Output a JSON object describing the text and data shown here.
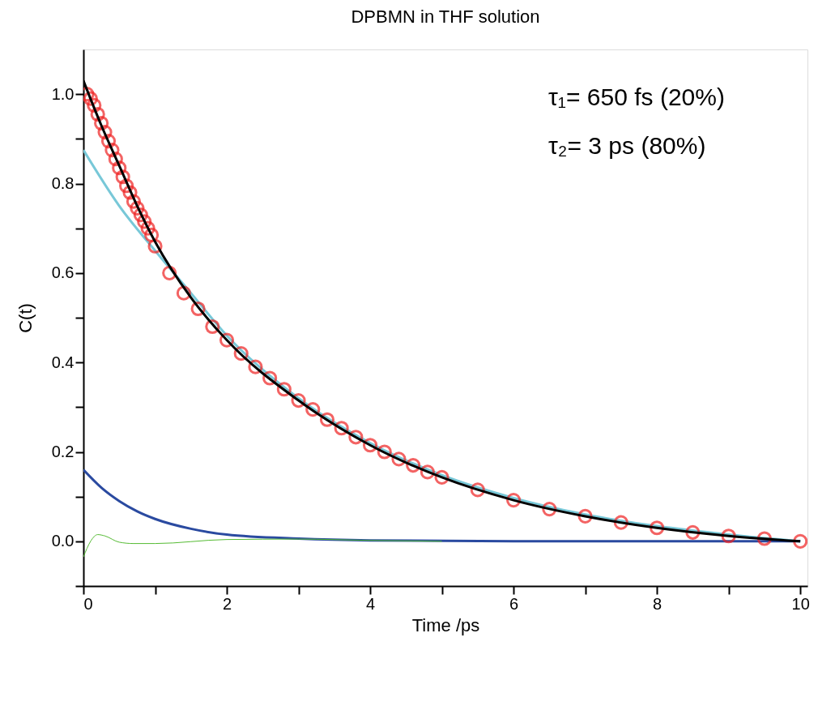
{
  "chart_data": {
    "type": "line",
    "title": "DPBMN in THF solution",
    "xlabel": "Time /ps",
    "ylabel": "C(t)",
    "xlim": [
      0,
      10.1
    ],
    "ylim": [
      -0.1,
      1.1
    ],
    "xticks": [
      0,
      {
        "value": 1,
        "label": null
      },
      2,
      {
        "value": 3,
        "label": null
      },
      4,
      {
        "value": 5,
        "label": null
      },
      6,
      {
        "value": 7,
        "label": null
      },
      8,
      {
        "value": 9,
        "label": null
      },
      10
    ],
    "yticks": [
      {
        "value": -0.1,
        "label": null
      },
      {
        "value": 0,
        "label": "0.0"
      },
      {
        "value": 0.1,
        "label": null
      },
      0.2,
      {
        "value": 0.3,
        "label": null
      },
      0.4,
      {
        "value": 0.5,
        "label": null
      },
      0.6,
      {
        "value": 0.7,
        "label": null
      },
      0.8,
      {
        "value": 0.9,
        "label": null
      },
      {
        "value": 1,
        "label": "1.0"
      }
    ],
    "grid": false,
    "annotations": [
      "τ₁= 650 fs (20%)",
      "τ₂= 3 ps (80%)"
    ],
    "series": [
      {
        "type": "scatter",
        "marker": "circle",
        "color": "#ee2222",
        "x": [
          0.05,
          0.1,
          0.15,
          0.2,
          0.25,
          0.3,
          0.35,
          0.4,
          0.45,
          0.5,
          0.55,
          0.6,
          0.65,
          0.7,
          0.75,
          0.8,
          0.85,
          0.9,
          0.95,
          1.0,
          1.2,
          1.4,
          1.6,
          1.8,
          2.0,
          2.2,
          2.4,
          2.6,
          2.8,
          3.0,
          3.2,
          3.4,
          3.6,
          3.8,
          4.0,
          4.2,
          4.4,
          4.6,
          4.8,
          5.0,
          5.5,
          6.0,
          6.5,
          7.0,
          7.5,
          8.0,
          8.5,
          9.0,
          9.5,
          10.0
        ],
        "values": [
          1.0,
          0.99,
          0.975,
          0.955,
          0.935,
          0.915,
          0.895,
          0.875,
          0.855,
          0.835,
          0.815,
          0.795,
          0.78,
          0.76,
          0.745,
          0.73,
          0.715,
          0.7,
          0.685,
          0.66,
          0.6,
          0.555,
          0.52,
          0.48,
          0.45,
          0.42,
          0.39,
          0.365,
          0.34,
          0.315,
          0.295,
          0.272,
          0.253,
          0.233,
          0.215,
          0.2,
          0.184,
          0.17,
          0.155,
          0.143,
          0.115,
          0.092,
          0.072,
          0.056,
          0.042,
          0.03,
          0.02,
          0.012,
          0.006,
          0.0
        ]
      },
      {
        "color": "#78c8d8",
        "x": [
          0,
          0.5,
          1,
          1.5,
          2,
          3,
          4,
          5,
          6,
          7,
          8,
          9,
          10
        ],
        "values": [
          0.875,
          0.75,
          0.65,
          0.555,
          0.46,
          0.32,
          0.22,
          0.148,
          0.097,
          0.06,
          0.034,
          0.015,
          0.0
        ]
      },
      {
        "color": "#000000",
        "x": [
          0,
          0.25,
          0.5,
          0.75,
          1,
          1.5,
          2,
          3,
          4,
          5,
          6,
          7,
          8,
          9,
          10
        ],
        "values": [
          1.03,
          0.93,
          0.84,
          0.75,
          0.67,
          0.545,
          0.45,
          0.315,
          0.215,
          0.143,
          0.092,
          0.056,
          0.03,
          0.012,
          0.0
        ]
      },
      {
        "color": "#2a4aa0",
        "x": [
          0,
          0.25,
          0.5,
          0.75,
          1,
          1.5,
          2,
          3,
          4,
          6,
          8,
          10
        ],
        "values": [
          0.16,
          0.12,
          0.09,
          0.067,
          0.05,
          0.028,
          0.015,
          0.006,
          0.002,
          0.0,
          0.0,
          0.0
        ]
      },
      {
        "color": "#55bb33",
        "x": [
          0,
          0.1,
          0.2,
          0.3,
          0.5,
          0.7,
          1,
          2,
          3,
          4,
          5
        ],
        "values": [
          -0.035,
          0.0,
          0.015,
          0.012,
          -0.002,
          -0.005,
          -0.005,
          0.004,
          0.005,
          0.002,
          0.0
        ]
      }
    ]
  }
}
